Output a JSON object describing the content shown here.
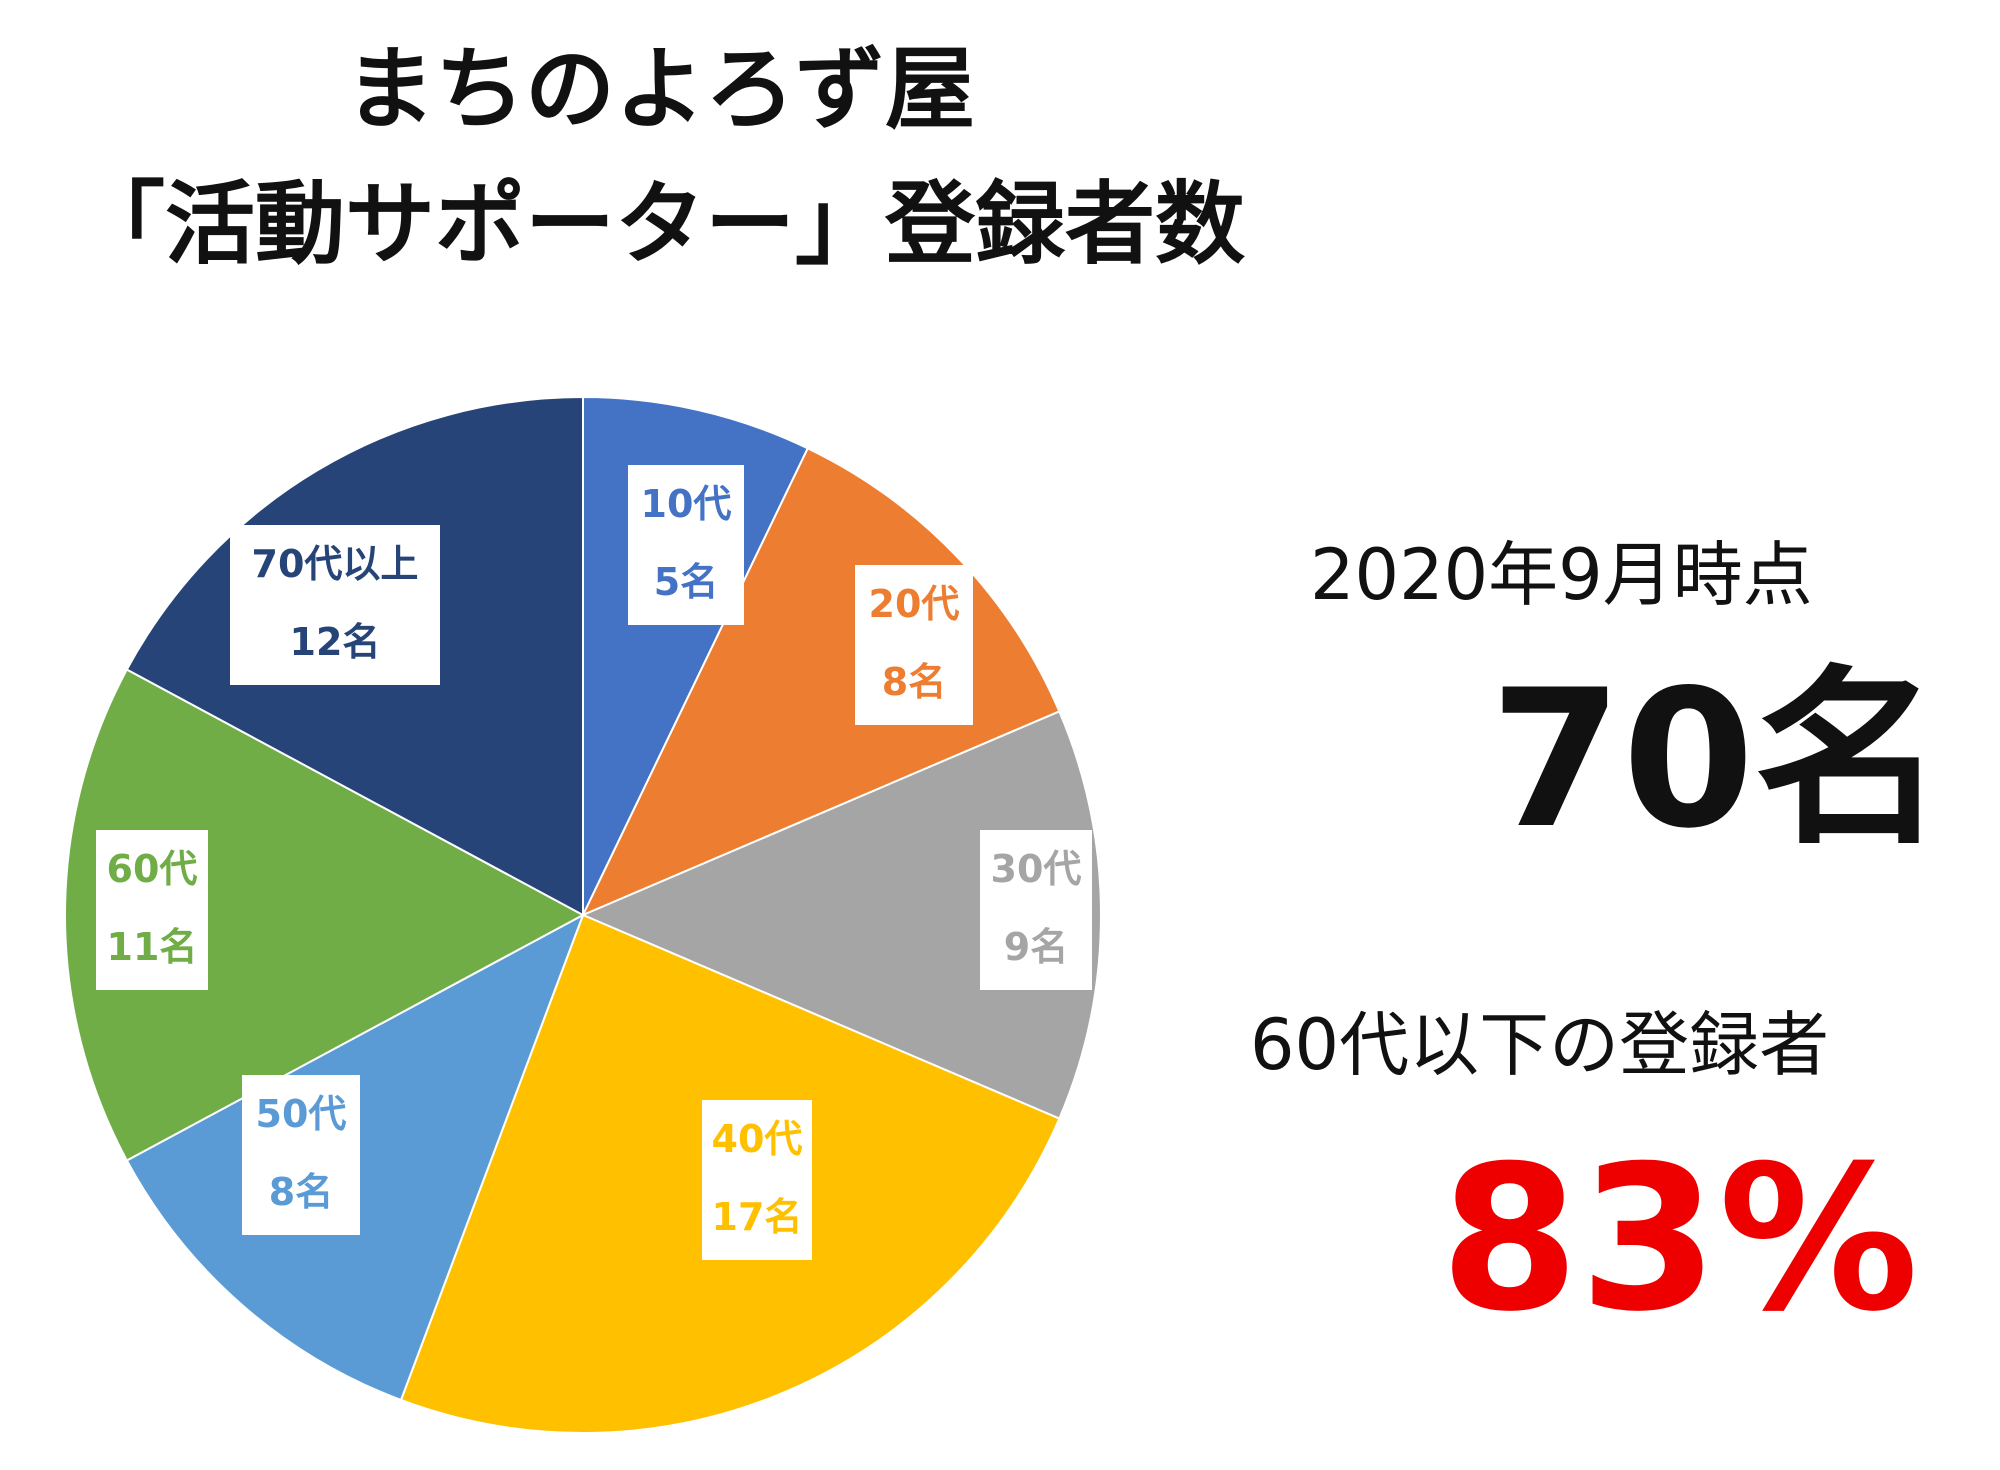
{
  "title_line1": "まちのよろず屋",
  "title_line2": "「活動サポーター」登録者数",
  "summary": {
    "as_of": "2020年9月時点",
    "total": "70名",
    "under60_label": "60代以下の登録者",
    "under60_percent": "83%"
  },
  "chart_data": {
    "type": "pie",
    "title": "まちのよろず屋「活動サポーター」登録者数",
    "categories": [
      "10代",
      "20代",
      "30代",
      "40代",
      "50代",
      "60代",
      "70代以上"
    ],
    "values": [
      5,
      8,
      9,
      17,
      8,
      11,
      12
    ],
    "value_labels": [
      "5名",
      "8名",
      "9名",
      "17名",
      "8名",
      "11名",
      "12名"
    ],
    "colors": [
      "#4472c4",
      "#ed7d31",
      "#a5a5a5",
      "#ffc000",
      "#5b9bd5",
      "#70ad47",
      "#264478"
    ],
    "start": "12 o'clock",
    "direction": "clockwise",
    "legend": "none"
  }
}
